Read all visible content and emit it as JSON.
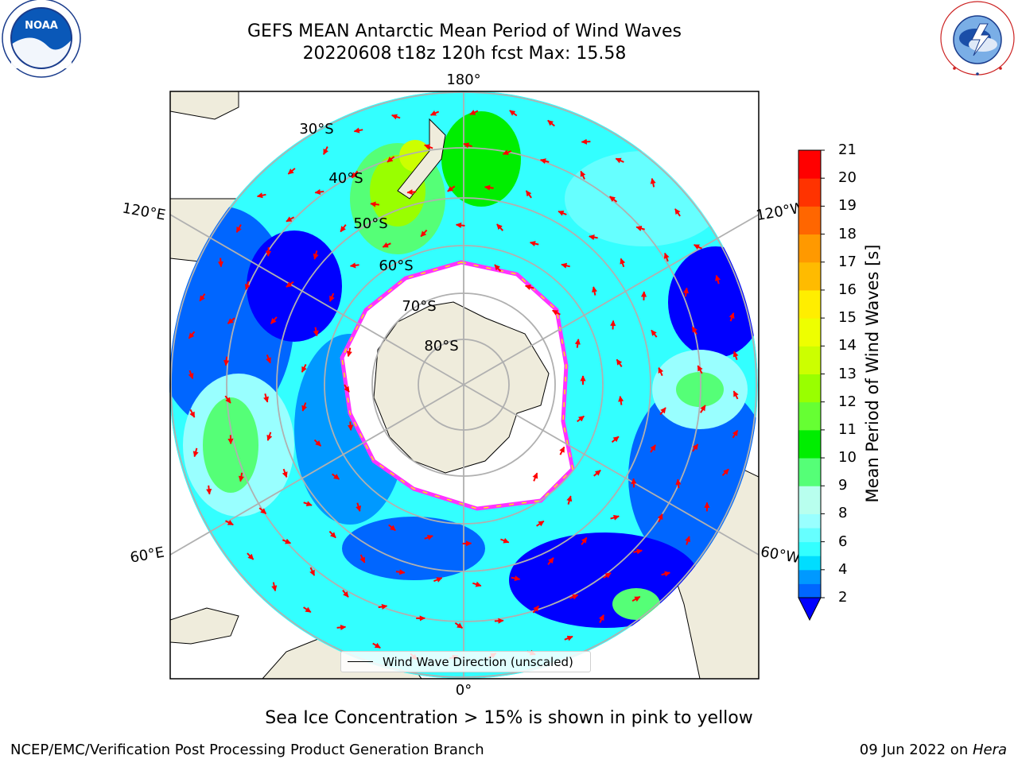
{
  "title": {
    "line1": "GEFS MEAN Antarctic Mean Period of Wind Waves",
    "line2": "20220608 t18z 120h fcst   Max: 15.58"
  },
  "logos": {
    "left": {
      "name": "NOAA",
      "text": "NOAA",
      "ring_text": "NATIONAL OCEANIC AND ATMOSPHERIC ADMINISTRATION · U.S. DEPARTMENT OF COMMERCE"
    },
    "right": {
      "name": "National Weather Service",
      "ring_text": "NATIONAL WEATHER SERVICE"
    }
  },
  "map": {
    "projection": "south polar stereographic",
    "longitude_labels": {
      "top": "180°",
      "upper_left": "120°E",
      "upper_right": "120°W",
      "lower_left": "60°E",
      "lower_right": "60°W",
      "bottom": "0°"
    },
    "latitude_labels": [
      "30°S",
      "40°S",
      "50°S",
      "60°S",
      "70°S",
      "80°S"
    ],
    "legend": {
      "label": "Wind Wave Direction (unscaled)"
    },
    "colors": {
      "land": "#efecdc",
      "ice": "#ffffff",
      "ice_edge": "#ff33ff",
      "vector": "#ff0000"
    }
  },
  "colorbar": {
    "label": "Mean Period of Wind Waves [s]",
    "ticks": [
      "2",
      "4",
      "6",
      "8",
      "9",
      "10",
      "11",
      "12",
      "13",
      "14",
      "15",
      "16",
      "17",
      "18",
      "19",
      "20",
      "21"
    ],
    "bins": [
      {
        "from": 2,
        "to": 3,
        "color": "#0066ff"
      },
      {
        "from": 3,
        "to": 4,
        "color": "#0099ff"
      },
      {
        "from": 4,
        "to": 5,
        "color": "#00ddff"
      },
      {
        "from": 5,
        "to": 6,
        "color": "#33ffff"
      },
      {
        "from": 6,
        "to": 7,
        "color": "#66ffff"
      },
      {
        "from": 7,
        "to": 8,
        "color": "#99ffff"
      },
      {
        "from": 8,
        "to": 9,
        "color": "#b8ffee"
      },
      {
        "from": 9,
        "to": 10,
        "color": "#55ff77"
      },
      {
        "from": 10,
        "to": 11,
        "color": "#00ee00"
      },
      {
        "from": 11,
        "to": 12,
        "color": "#66ff33"
      },
      {
        "from": 12,
        "to": 13,
        "color": "#99ff00"
      },
      {
        "from": 13,
        "to": 14,
        "color": "#ccff00"
      },
      {
        "from": 14,
        "to": 15,
        "color": "#eeff00"
      },
      {
        "from": 15,
        "to": 16,
        "color": "#ffee00"
      },
      {
        "from": 16,
        "to": 17,
        "color": "#ffbb00"
      },
      {
        "from": 17,
        "to": 18,
        "color": "#ff9900"
      },
      {
        "from": 18,
        "to": 19,
        "color": "#ff6600"
      },
      {
        "from": 19,
        "to": 20,
        "color": "#ff3300"
      },
      {
        "from": 20,
        "to": 21,
        "color": "#ff0000"
      }
    ],
    "underflow_color": "#0000ff"
  },
  "footnote": "Sea Ice Concentration > 15% is shown in pink to yellow",
  "credit": "NCEP/EMC/Verification Post Processing Product Generation Branch",
  "date": {
    "text": "09 Jun 2022 on ",
    "host": "Hera"
  }
}
